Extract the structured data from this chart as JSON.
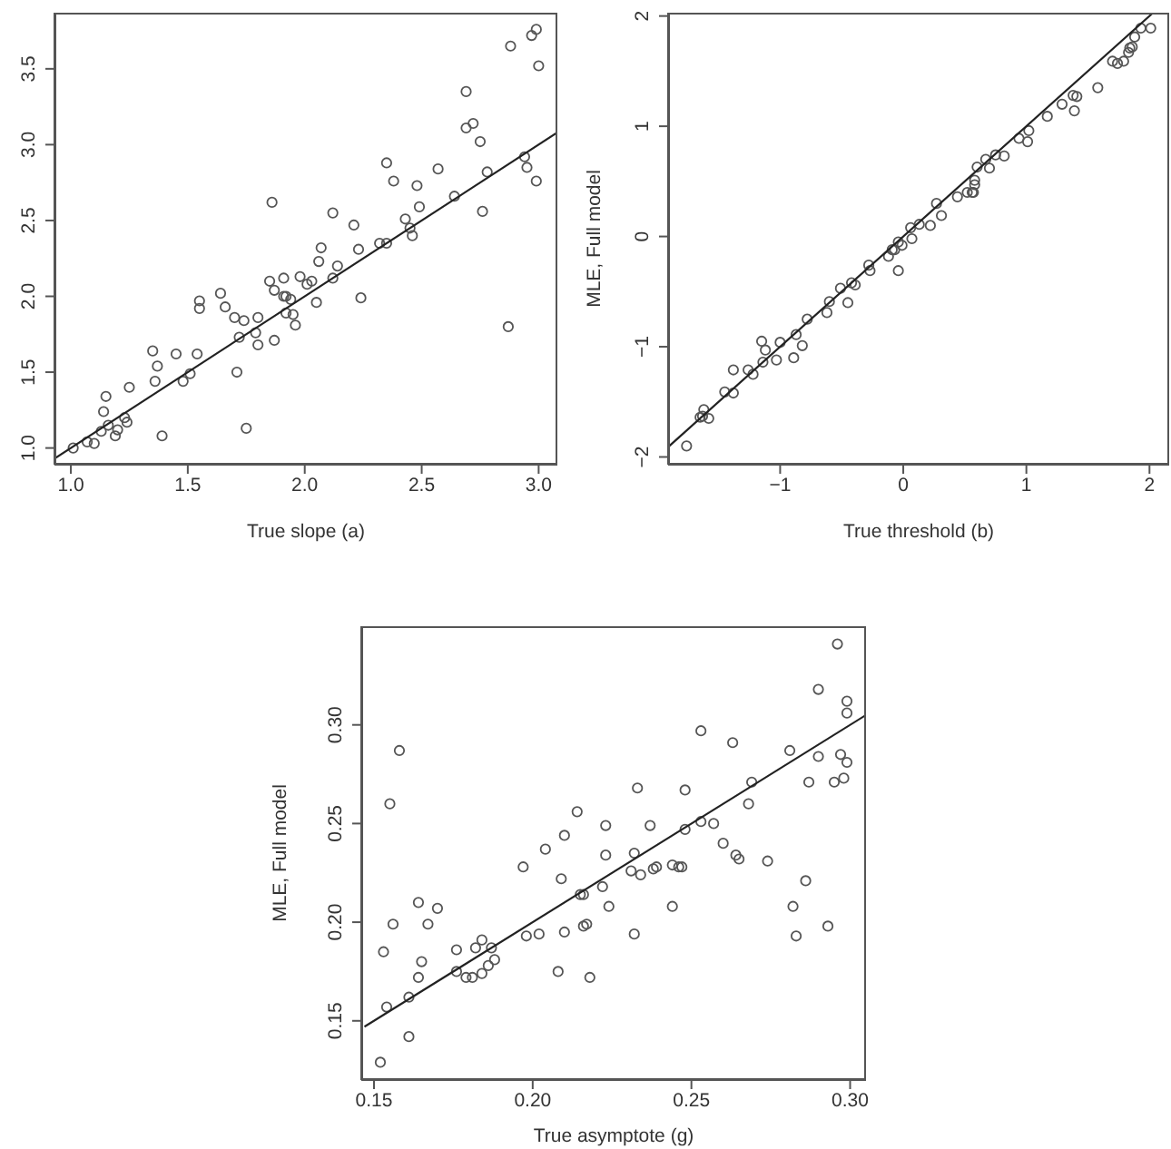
{
  "chart_data": [
    {
      "type": "scatter",
      "xlabel": "True slope (a)",
      "xlim": [
        0.93,
        3.08
      ],
      "ylim": [
        0.89,
        3.87
      ],
      "xticks": [
        {
          "value": 1,
          "label": "1.0"
        },
        1.5,
        {
          "value": 2,
          "label": "2.0"
        },
        2.5,
        {
          "value": 3,
          "label": "3.0"
        }
      ],
      "yticks": [
        {
          "value": 1,
          "label": "1.0"
        },
        1.5,
        {
          "value": 2,
          "label": "2.0"
        },
        2.5,
        {
          "value": 3,
          "label": "3.0"
        },
        3.5
      ],
      "series": [
        {
          "marker": "circle",
          "color": "#555555",
          "x": [
            1.01,
            1.07,
            1.1,
            1.13,
            1.14,
            1.15,
            1.16,
            1.19,
            1.2,
            1.23,
            1.24,
            1.25,
            1.35,
            1.37,
            1.36,
            1.39,
            1.45,
            1.48,
            1.51,
            1.54,
            1.55,
            1.55,
            1.64,
            1.66,
            1.7,
            1.71,
            1.72,
            1.74,
            1.75,
            1.79,
            1.8,
            1.8,
            1.85,
            1.86,
            1.87,
            1.87,
            1.91,
            1.91,
            1.92,
            1.92,
            1.94,
            1.95,
            1.96,
            1.98,
            2.01,
            2.03,
            2.05,
            2.07,
            2.06,
            2.12,
            2.12,
            2.14,
            2.21,
            2.23,
            2.24,
            2.32,
            2.35,
            2.35,
            2.38,
            2.43,
            2.45,
            2.46,
            2.48,
            2.49,
            2.57,
            2.64,
            2.69,
            2.69,
            2.72,
            2.75,
            2.76,
            2.78,
            2.87,
            2.88,
            2.94,
            2.95,
            2.97,
            2.99,
            2.99,
            3.0
          ],
          "values": [
            1.0,
            1.04,
            1.03,
            1.11,
            1.24,
            1.34,
            1.15,
            1.08,
            1.12,
            1.2,
            1.17,
            1.4,
            1.64,
            1.54,
            1.44,
            1.08,
            1.62,
            1.44,
            1.49,
            1.62,
            1.97,
            1.92,
            2.02,
            1.93,
            1.86,
            1.5,
            1.73,
            1.84,
            1.13,
            1.76,
            1.86,
            1.68,
            2.1,
            2.62,
            1.71,
            2.04,
            2.12,
            2.0,
            1.89,
            2.0,
            1.98,
            1.88,
            1.81,
            2.13,
            2.08,
            2.1,
            1.96,
            2.32,
            2.23,
            2.55,
            2.12,
            2.2,
            2.47,
            2.31,
            1.99,
            2.35,
            2.35,
            2.88,
            2.76,
            2.51,
            2.45,
            2.4,
            2.73,
            2.59,
            2.84,
            2.66,
            3.35,
            3.11,
            3.14,
            3.02,
            2.56,
            2.82,
            1.8,
            3.65,
            2.92,
            2.85,
            3.72,
            3.76,
            2.76,
            3.52
          ]
        },
        {
          "type": "line",
          "color": "#222222",
          "x": [
            0.93,
            3.08
          ],
          "values": [
            0.93,
            3.08
          ]
        }
      ]
    },
    {
      "type": "scatter",
      "xlabel": "True threshold (b)",
      "ylabel": "MLE, Full model",
      "xlim": [
        -1.91,
        2.16
      ],
      "ylim": [
        -2.07,
        2.03
      ],
      "xticks": [
        {
          "value": -1,
          "label": "−1"
        },
        0,
        1,
        2
      ],
      "yticks": [
        {
          "value": -2,
          "label": "−2"
        },
        {
          "value": -1,
          "label": "−1"
        },
        0,
        1,
        2
      ],
      "series": [
        {
          "marker": "circle",
          "color": "#555555",
          "x": [
            -1.76,
            -1.63,
            -1.62,
            -1.65,
            -1.58,
            -1.45,
            -1.38,
            -1.38,
            -1.26,
            -1.22,
            -1.15,
            -1.14,
            -1.12,
            -1.03,
            -1.0,
            -0.89,
            -0.87,
            -0.82,
            -0.78,
            -0.62,
            -0.6,
            -0.51,
            -0.45,
            -0.42,
            -0.39,
            -0.28,
            -0.27,
            -0.12,
            -0.09,
            -0.07,
            -0.04,
            -0.01,
            -0.04,
            0.06,
            0.07,
            0.13,
            0.22,
            0.27,
            0.31,
            0.44,
            0.52,
            0.56,
            0.58,
            0.58,
            0.57,
            0.6,
            0.67,
            0.7,
            0.75,
            0.82,
            0.94,
            1.01,
            1.02,
            1.17,
            1.29,
            1.38,
            1.39,
            1.41,
            1.58,
            1.7,
            1.74,
            1.79,
            1.83,
            1.84,
            1.86,
            1.88,
            1.93,
            2.01
          ],
          "values": [
            -1.9,
            -1.63,
            -1.57,
            -1.64,
            -1.65,
            -1.41,
            -1.21,
            -1.42,
            -1.21,
            -1.25,
            -0.95,
            -1.14,
            -1.03,
            -1.12,
            -0.96,
            -1.1,
            -0.89,
            -0.99,
            -0.75,
            -0.69,
            -0.59,
            -0.47,
            -0.6,
            -0.42,
            -0.44,
            -0.26,
            -0.31,
            -0.18,
            -0.12,
            -0.12,
            -0.05,
            -0.08,
            -0.31,
            0.08,
            -0.02,
            0.11,
            0.1,
            0.3,
            0.19,
            0.36,
            0.4,
            0.4,
            0.51,
            0.47,
            0.4,
            0.63,
            0.7,
            0.62,
            0.74,
            0.73,
            0.89,
            0.86,
            0.96,
            1.09,
            1.2,
            1.28,
            1.14,
            1.27,
            1.35,
            1.59,
            1.57,
            1.59,
            1.67,
            1.71,
            1.72,
            1.81,
            1.89,
            1.89
          ]
        },
        {
          "type": "line",
          "color": "#222222",
          "x": [
            -1.91,
            2.03
          ],
          "values": [
            -1.91,
            2.03
          ]
        }
      ]
    },
    {
      "type": "scatter",
      "xlabel": "True asymptote (g)",
      "ylabel": "MLE, Full model",
      "xlim": [
        0.146,
        0.305
      ],
      "ylim": [
        0.12,
        0.35
      ],
      "xticks": [
        0.15,
        {
          "value": 0.2,
          "label": "0.20"
        },
        0.25,
        {
          "value": 0.3,
          "label": "0.30"
        }
      ],
      "yticks": [
        0.15,
        {
          "value": 0.2,
          "label": "0.20"
        },
        0.25,
        {
          "value": 0.3,
          "label": "0.30"
        }
      ],
      "series": [
        {
          "marker": "circle",
          "color": "#555555",
          "x": [
            0.152,
            0.154,
            0.153,
            0.156,
            0.155,
            0.158,
            0.161,
            0.161,
            0.164,
            0.165,
            0.164,
            0.167,
            0.17,
            0.176,
            0.176,
            0.179,
            0.181,
            0.182,
            0.184,
            0.184,
            0.186,
            0.187,
            0.188,
            0.197,
            0.198,
            0.202,
            0.204,
            0.208,
            0.209,
            0.21,
            0.21,
            0.214,
            0.215,
            0.216,
            0.216,
            0.217,
            0.218,
            0.222,
            0.223,
            0.223,
            0.224,
            0.231,
            0.232,
            0.232,
            0.233,
            0.234,
            0.237,
            0.238,
            0.239,
            0.244,
            0.244,
            0.246,
            0.247,
            0.248,
            0.248,
            0.253,
            0.253,
            0.257,
            0.26,
            0.263,
            0.264,
            0.265,
            0.268,
            0.269,
            0.274,
            0.281,
            0.282,
            0.283,
            0.286,
            0.287,
            0.29,
            0.29,
            0.293,
            0.295,
            0.296,
            0.297,
            0.298,
            0.299,
            0.299,
            0.299
          ],
          "values": [
            0.129,
            0.157,
            0.185,
            0.199,
            0.26,
            0.287,
            0.142,
            0.162,
            0.172,
            0.18,
            0.21,
            0.199,
            0.207,
            0.186,
            0.175,
            0.172,
            0.172,
            0.187,
            0.191,
            0.174,
            0.178,
            0.187,
            0.181,
            0.228,
            0.193,
            0.194,
            0.237,
            0.175,
            0.222,
            0.195,
            0.244,
            0.256,
            0.214,
            0.214,
            0.198,
            0.199,
            0.172,
            0.218,
            0.249,
            0.234,
            0.208,
            0.226,
            0.235,
            0.194,
            0.268,
            0.224,
            0.249,
            0.227,
            0.228,
            0.208,
            0.229,
            0.228,
            0.228,
            0.267,
            0.247,
            0.297,
            0.251,
            0.25,
            0.24,
            0.291,
            0.234,
            0.232,
            0.26,
            0.271,
            0.231,
            0.287,
            0.208,
            0.193,
            0.221,
            0.271,
            0.318,
            0.284,
            0.198,
            0.271,
            0.341,
            0.285,
            0.273,
            0.312,
            0.306,
            0.281
          ]
        },
        {
          "type": "line",
          "color": "#222222",
          "x": [
            0.147,
            0.305
          ],
          "values": [
            0.147,
            0.305
          ]
        }
      ]
    }
  ]
}
